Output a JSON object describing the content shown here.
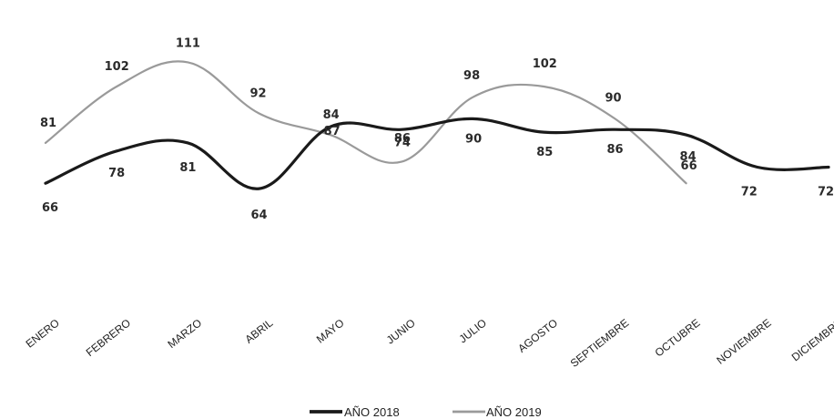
{
  "chart_data": {
    "type": "line",
    "categories": [
      "ENERO",
      "FEBRERO",
      "MARZO",
      "ABRIL",
      "MAYO",
      "JUNIO",
      "JULIO",
      "AGOSTO",
      "SEPTIEMBRE",
      "OCTUBRE",
      "NOVIEMBRE",
      "DICIEMBRE"
    ],
    "series": [
      {
        "name": "AÑO 2018",
        "values": [
          66,
          78,
          81,
          64,
          87,
          86,
          90,
          85,
          86,
          84,
          72,
          72
        ],
        "color": "#1a1a1a"
      },
      {
        "name": "AÑO 2019",
        "values": [
          81,
          102,
          111,
          92,
          84,
          74,
          98,
          102,
          90,
          66,
          null,
          null
        ],
        "color": "#9a9a9a"
      }
    ],
    "title": "",
    "xlabel": "",
    "ylabel": "",
    "grid": false,
    "legend": "bottom-center",
    "smooth": true
  }
}
